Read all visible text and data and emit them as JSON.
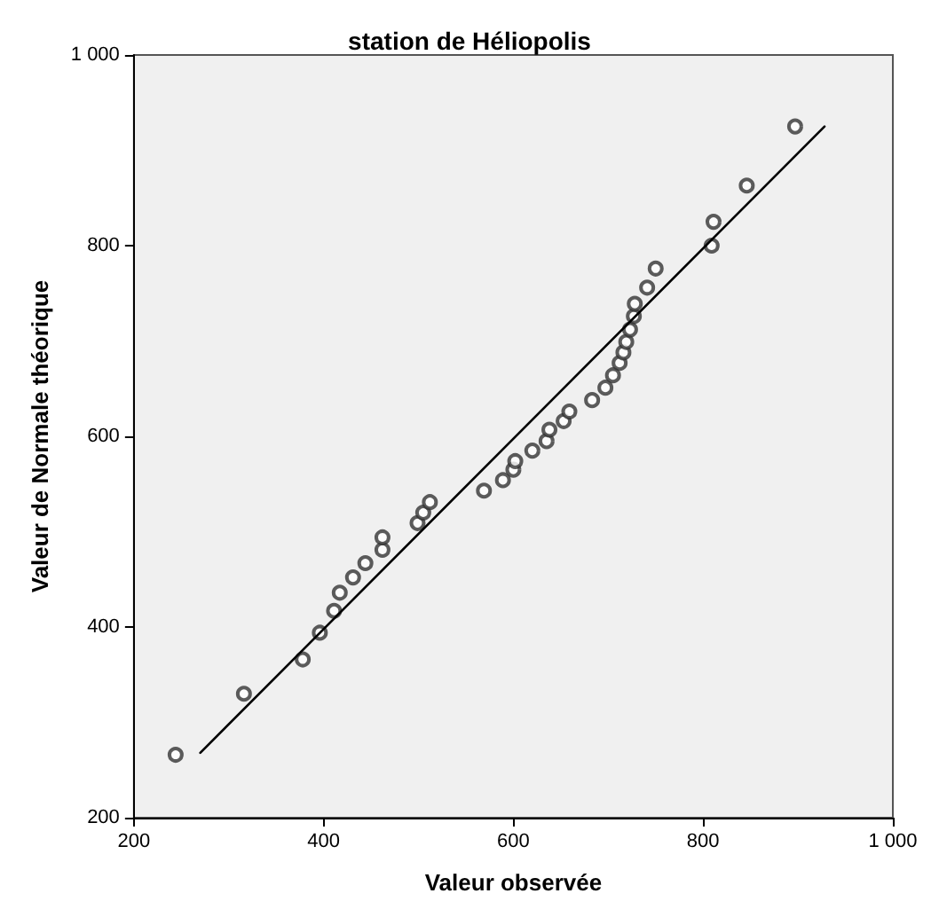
{
  "chart_data": {
    "type": "scatter",
    "title": "station de Héliopolis",
    "xlabel": "Valeur observée",
    "ylabel": "Valeur de Normale théorique",
    "xlim": [
      200,
      1000
    ],
    "ylim": [
      200,
      1000
    ],
    "xticks": [
      200,
      400,
      600,
      800,
      {
        "value": 1000,
        "label": "1 000"
      }
    ],
    "yticks": [
      200,
      400,
      600,
      800,
      {
        "value": 1000,
        "label": "1 000"
      }
    ],
    "grid": false,
    "marker": "circle",
    "series": [
      {
        "color": "#333333",
        "x": [
          244,
          316,
          378,
          396,
          411,
          417,
          431,
          444,
          462,
          462,
          499,
          505,
          512,
          569,
          589,
          600,
          602,
          620,
          635,
          638,
          653,
          659,
          683,
          697,
          705,
          712,
          716,
          719,
          723,
          727,
          728,
          741,
          750,
          809,
          811,
          846,
          897
        ],
        "values": [
          266,
          330,
          366,
          394,
          417,
          436,
          452,
          467,
          481,
          494,
          509,
          520,
          531,
          543,
          554,
          565,
          574,
          585,
          595,
          607,
          616,
          626,
          638,
          651,
          664,
          677,
          688,
          699,
          712,
          726,
          739,
          756,
          776,
          800,
          825,
          863,
          925
        ]
      },
      {
        "type": "line",
        "color": "#000000",
        "marker": "none",
        "x": [
          270,
          928
        ],
        "values": [
          268,
          925
        ]
      }
    ]
  }
}
